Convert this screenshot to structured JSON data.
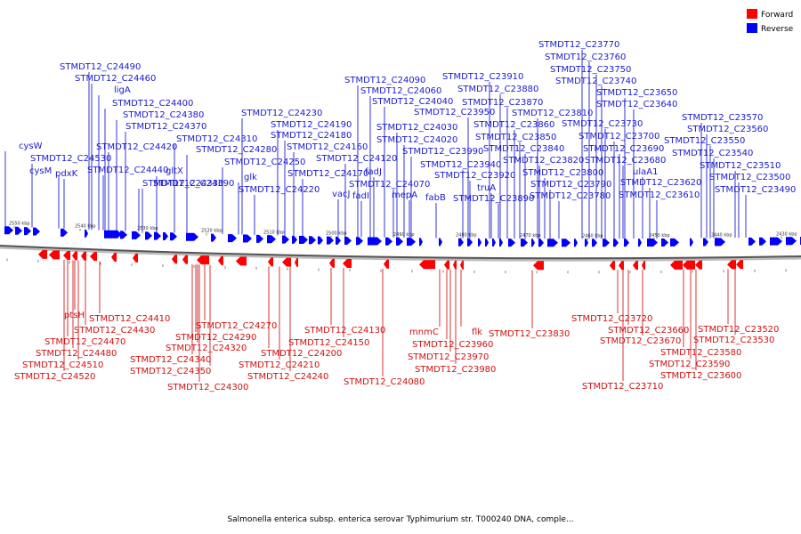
{
  "legend": {
    "items": [
      {
        "label": "Forward",
        "color": "#ff0000"
      },
      {
        "label": "Reverse",
        "color": "#0000ff"
      }
    ]
  },
  "caption": "Salmonella enterica subsp. enterica serovar Typhimurium str. T000240 DNA, comple...",
  "ticks": [
    {
      "label": "2550 kbp"
    },
    {
      "label": "2540 kbp"
    },
    {
      "label": "2530 kbp"
    },
    {
      "label": "2520 kbp"
    },
    {
      "label": "2510 kbp"
    },
    {
      "label": "2500 kbp"
    },
    {
      "label": "2490 kbp"
    },
    {
      "label": "2480 kbp"
    },
    {
      "label": "2470 kbp"
    },
    {
      "label": "2460 kbp"
    },
    {
      "label": "2450 kbp"
    },
    {
      "label": "2440 kbp"
    },
    {
      "label": "2430 kbp"
    }
  ],
  "blue_labels": [
    "STMDT12_C24490",
    "STMDT12_C24460",
    "ligA",
    "STMDT12_C24400",
    "STMDT12_C24380",
    "STMDT12_C24370",
    "cysW",
    "STMDT12_C24530",
    "cysM",
    "pdxK",
    "STMDT12_C24420",
    "STMDT12_C24440",
    "gltX",
    "STMDT12_C24390",
    "STMDT12_C24330",
    "STMDT12_C24310",
    "STMDT12_C24280",
    "glk",
    "STMDT12_C24250",
    "STMDT12_C24220",
    "STMDT12_C24230",
    "STMDT12_C24190",
    "STMDT12_C24180",
    "STMDT12_C24160",
    "STMDT12_C24170",
    "STMDT12_C24120",
    "fadJ",
    "vacJ",
    "fadI",
    "STMDT12_C24070",
    "mepA",
    "STMDT12_C24090",
    "STMDT12_C24060",
    "STMDT12_C24040",
    "STMDT12_C24030",
    "STMDT12_C24020",
    "STMDT12_C23990",
    "fabB",
    "STMDT12_C23910",
    "STMDT12_C23880",
    "STMDT12_C23870",
    "STMDT12_C23950",
    "STMDT12_C23860",
    "STMDT12_C23850",
    "STMDT12_C23840",
    "STMDT12_C23940",
    "STMDT12_C23920",
    "truA",
    "STMDT12_C23890",
    "STMDT12_C23810",
    "STMDT12_C23820",
    "STMDT12_C23800",
    "STMDT12_C23790",
    "STMDT12_C23780",
    "STMDT12_C23770",
    "STMDT12_C23760",
    "STMDT12_C23750",
    "STMDT12_C23740",
    "STMDT12_C23650",
    "STMDT12_C23640",
    "STMDT12_C23730",
    "STMDT12_C23700",
    "STMDT12_C23690",
    "STMDT12_C23680",
    "ulaA1",
    "STMDT12_C23620",
    "STMDT12_C23610",
    "STMDT12_C23570",
    "STMDT12_C23560",
    "STMDT12_C23550",
    "STMDT12_C23540",
    "STMDT12_C23510",
    "STMDT12_C23500",
    "STMDT12_C23490"
  ],
  "red_labels": [
    "ptsH",
    "STMDT12_C24410",
    "STMDT12_C24430",
    "STMDT12_C24470",
    "STMDT12_C24480",
    "STMDT12_C24510",
    "STMDT12_C24520",
    "STMDT12_C24270",
    "STMDT12_C24290",
    "STMDT12_C24320",
    "STMDT12_C24340",
    "STMDT12_C24350",
    "STMDT12_C24300",
    "STMDT12_C24130",
    "STMDT12_C24150",
    "STMDT12_C24200",
    "STMDT12_C24210",
    "STMDT12_C24240",
    "STMDT12_C24080",
    "mnmC",
    "flk",
    "STMDT12_C23960",
    "STMDT12_C23970",
    "STMDT12_C23980",
    "STMDT12_C23830",
    "STMDT12_C23720",
    "STMDT12_C23660",
    "STMDT12_C23670",
    "STMDT12_C23580",
    "STMDT12_C23590",
    "STMDT12_C23600",
    "STMDT12_C23710",
    "STMDT12_C23520",
    "STMDT12_C23530"
  ]
}
